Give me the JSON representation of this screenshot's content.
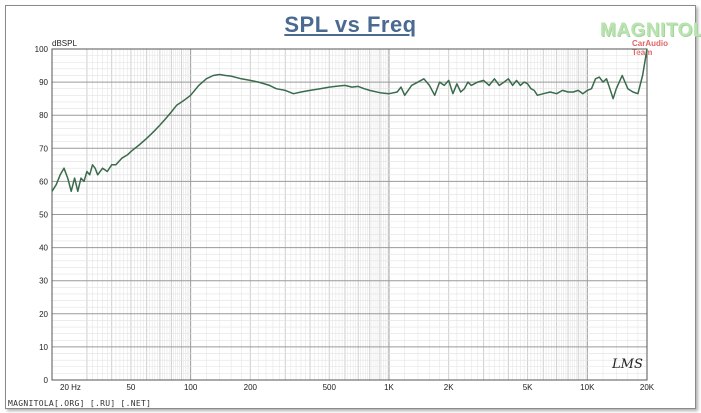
{
  "chart_data": {
    "type": "line",
    "title": "SPL vs Freq",
    "ylabel": "dBSPL",
    "x_scale": "log",
    "xlim": [
      20,
      20000
    ],
    "ylim": [
      0,
      100
    ],
    "grid": true,
    "x_tick_labels": [
      {
        "value": 20,
        "label": "20 Hz"
      },
      {
        "value": 50,
        "label": "50"
      },
      {
        "value": 100,
        "label": "100"
      },
      {
        "value": 200,
        "label": "200"
      },
      {
        "value": 500,
        "label": "500"
      },
      {
        "value": 1000,
        "label": "1K"
      },
      {
        "value": 2000,
        "label": "2K"
      },
      {
        "value": 5000,
        "label": "5K"
      },
      {
        "value": 10000,
        "label": "10K"
      },
      {
        "value": 20000,
        "label": "20K"
      }
    ],
    "y_ticks": [
      0,
      10,
      20,
      30,
      40,
      50,
      60,
      70,
      80,
      90,
      100
    ],
    "series": [
      {
        "color": "#3a6b4c",
        "x": [
          20,
          21,
          22,
          23,
          24,
          25,
          26,
          27,
          28,
          29,
          30,
          31,
          32,
          33,
          34,
          36,
          38,
          40,
          42,
          45,
          48,
          50,
          55,
          60,
          65,
          70,
          75,
          80,
          85,
          90,
          95,
          100,
          110,
          120,
          130,
          140,
          150,
          160,
          180,
          200,
          220,
          250,
          270,
          300,
          330,
          360,
          400,
          450,
          500,
          550,
          600,
          650,
          700,
          750,
          800,
          900,
          1000,
          1100,
          1150,
          1200,
          1300,
          1400,
          1500,
          1600,
          1700,
          1800,
          1900,
          2000,
          2100,
          2200,
          2300,
          2400,
          2500,
          2600,
          2800,
          3000,
          3200,
          3400,
          3600,
          3800,
          4000,
          4200,
          4400,
          4600,
          4800,
          5000,
          5200,
          5400,
          5600,
          6000,
          6500,
          7000,
          7500,
          8000,
          8500,
          9000,
          9500,
          10000,
          10500,
          11000,
          11500,
          12000,
          12500,
          13000,
          13500,
          14000,
          15000,
          16000,
          17000,
          18000,
          19000,
          20000
        ],
        "values": [
          57,
          59,
          62,
          64,
          61,
          57,
          61,
          57,
          61,
          60,
          63,
          62,
          65,
          64,
          62,
          64,
          63,
          65,
          65,
          67,
          68,
          69,
          71,
          73,
          75,
          77,
          79,
          81,
          83,
          84,
          85,
          86,
          89,
          91,
          92,
          92.3,
          92,
          91.8,
          91,
          90.5,
          90,
          89,
          88,
          87.5,
          86.5,
          87,
          87.5,
          88,
          88.5,
          88.8,
          89,
          88.5,
          88.7,
          88,
          87.5,
          86.8,
          86.5,
          87,
          88.5,
          86,
          89,
          90,
          91,
          89,
          86,
          90,
          89,
          90.5,
          86.5,
          89.5,
          87,
          88,
          90,
          89,
          90,
          90.5,
          89,
          91,
          89,
          90,
          91,
          89,
          90.5,
          89,
          90,
          89.5,
          88,
          87.5,
          86,
          86.5,
          87,
          86.5,
          87.5,
          87,
          87,
          87.5,
          86.5,
          87.5,
          88,
          91,
          91.5,
          90,
          91,
          88,
          85,
          88,
          92,
          88,
          87,
          86.5,
          92,
          100
        ]
      }
    ]
  },
  "branding": {
    "logo_text": "MAGNITOLA",
    "logo_sub": "CarAudio Team",
    "footer": "MAGNITOLA[.ORG] [.RU] [.NET]",
    "signature": "LMS"
  }
}
